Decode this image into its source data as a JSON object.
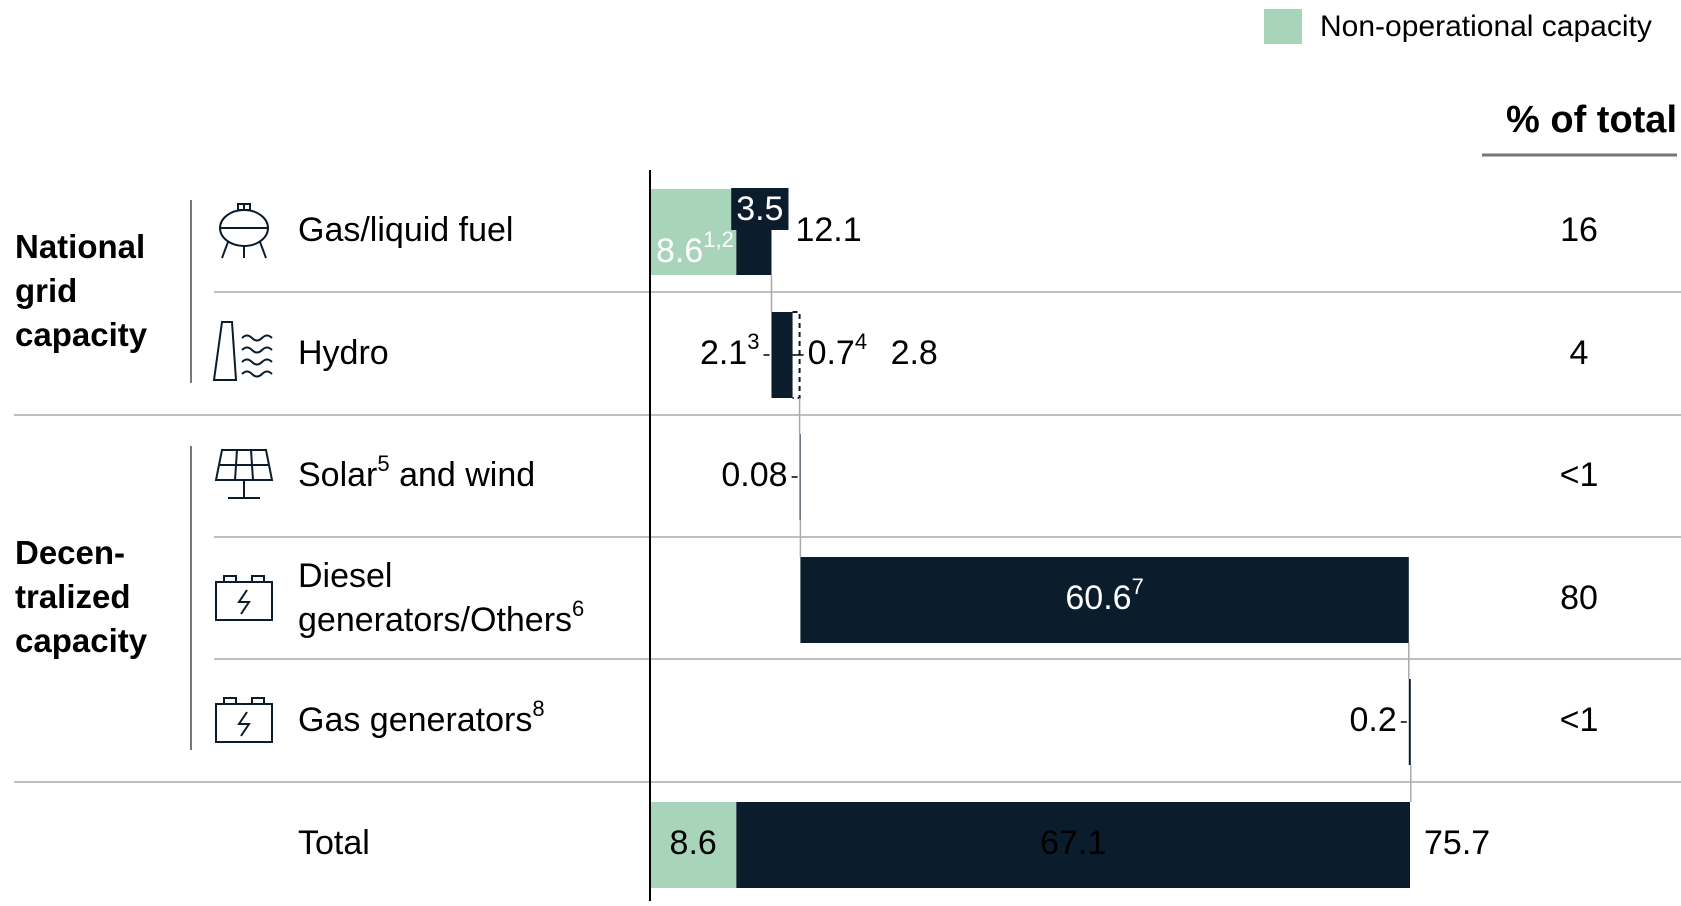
{
  "chart_data": {
    "type": "waterfall",
    "legend": {
      "label": "Non-operational capacity",
      "color": "#a8d5ba"
    },
    "colors": {
      "non_operational": "#a8d5ba",
      "operational": "#0b1c2c",
      "dashed": "#0b1c2c"
    },
    "share_header": "% of total",
    "xlim": [
      0,
      75.7
    ],
    "groups": [
      {
        "label": [
          "National",
          "grid",
          "capacity"
        ],
        "rows": [
          0,
          1
        ]
      },
      {
        "label": [
          "Decen-",
          "tralized",
          "capacity"
        ],
        "rows": [
          2,
          3,
          4
        ]
      }
    ],
    "rows": [
      {
        "label": [
          [
            {
              "text": "Gas/liquid fuel"
            }
          ]
        ],
        "segments": [
          {
            "value": 8.6,
            "kind": "non_operational",
            "note": "1,2"
          },
          {
            "value": 3.5,
            "kind": "operational"
          }
        ],
        "total": 12.1,
        "share": 16
      },
      {
        "label": [
          [
            {
              "text": "Hydro"
            }
          ]
        ],
        "segments": [
          {
            "value": 2.1,
            "kind": "operational",
            "note": "3"
          },
          {
            "value": 0.7,
            "kind": "dashed",
            "note": "4"
          }
        ],
        "total": 2.8,
        "share": 4
      },
      {
        "label": [
          [
            {
              "text": "Solar"
            },
            {
              "text": "5",
              "sup": true
            },
            {
              "text": " and wind"
            }
          ]
        ],
        "segments": [
          {
            "value": 0.08,
            "kind": "operational"
          }
        ],
        "share": "<1"
      },
      {
        "label": [
          [
            {
              "text": "Diesel"
            }
          ],
          [
            {
              "text": "generators/Others"
            },
            {
              "text": "6",
              "sup": true
            }
          ]
        ],
        "segments": [
          {
            "value": 60.6,
            "kind": "operational",
            "note": "7"
          }
        ],
        "share": 80
      },
      {
        "label": [
          [
            {
              "text": "Gas generators"
            },
            {
              "text": "8",
              "sup": true
            }
          ]
        ],
        "segments": [
          {
            "value": 0.2,
            "kind": "operational"
          }
        ],
        "share": "<1"
      }
    ],
    "total_row": {
      "label": "Total",
      "segments": [
        {
          "value": 8.6,
          "kind": "non_operational"
        },
        {
          "value": 67.1,
          "kind": "operational"
        }
      ],
      "total": 75.7
    }
  }
}
